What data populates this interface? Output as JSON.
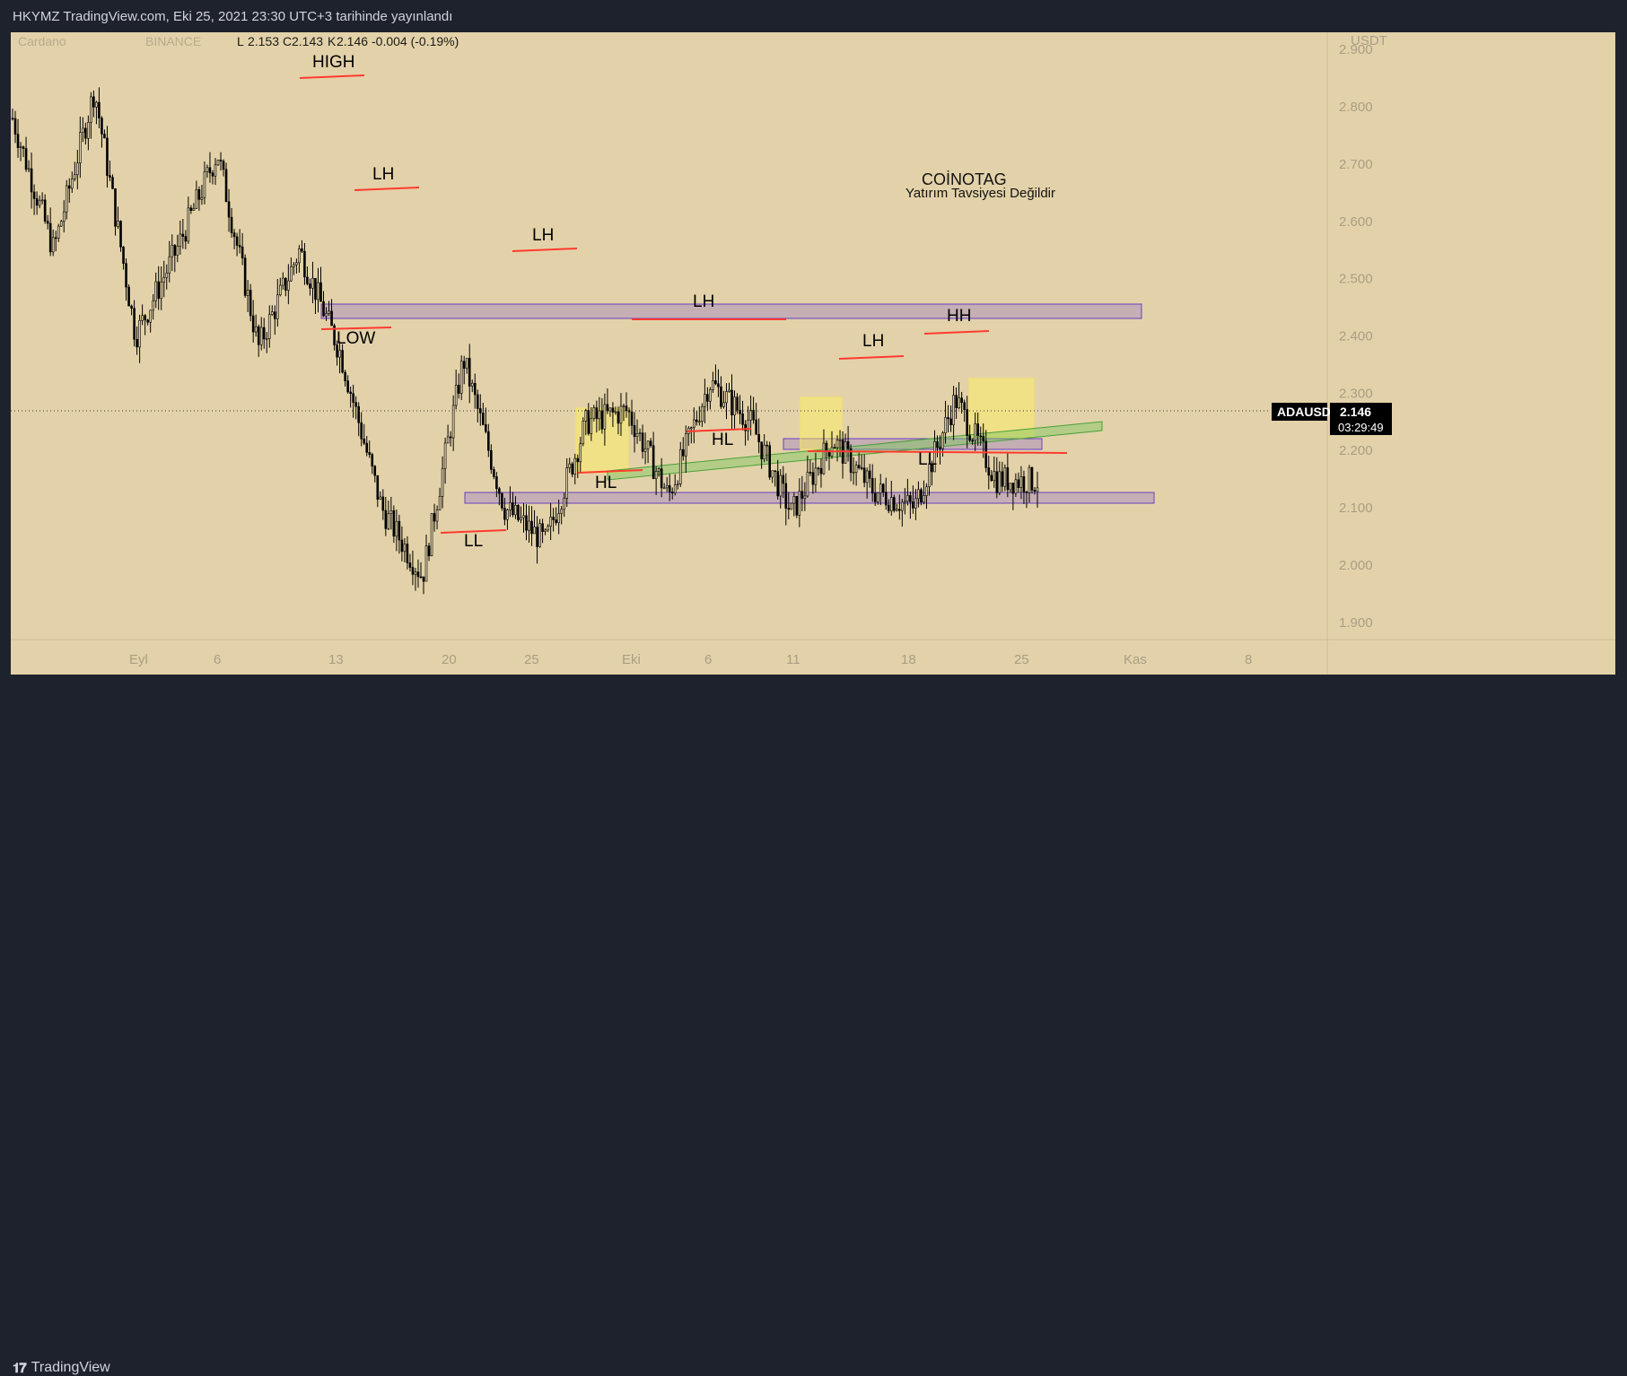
{
  "header": {
    "publish_line": "HKYMZ TradingView.com, Eki 25, 2021 23:30 UTC+3 tarihinde yayınlandı"
  },
  "legend": {
    "symbol_name": "Cardano",
    "exchange": "BINANCE",
    "low_label": "L",
    "low_value": "2.153",
    "close_label": "C",
    "close_value": "2.143",
    "last_label": "K",
    "last_value": "2.146",
    "change": "-0.004 (-0.19%)"
  },
  "price_axis": {
    "currency": "USDT",
    "ticks": [
      "2.900",
      "2.800",
      "2.700",
      "2.600",
      "2.500",
      "2.400",
      "2.300",
      "2.200",
      "2.100",
      "2.000",
      "1.900"
    ]
  },
  "time_axis": {
    "ticks": [
      "Eyl",
      "6",
      "13",
      "20",
      "25",
      "Eki",
      "6",
      "11",
      "18",
      "25",
      "Kas",
      "8"
    ]
  },
  "current_price": {
    "symbol": "ADAUSDT",
    "price": "2.146",
    "countdown": "03:29:49"
  },
  "watermark": {
    "line1": "COİNOTAG",
    "line2": "Yatırım Tavsiyesi Değildir"
  },
  "annotations": [
    "HIGH",
    "LH",
    "LOW",
    "LH",
    "LL",
    "HL",
    "LH",
    "HL",
    "LH",
    "LL",
    "HH"
  ],
  "footer": {
    "brand": "TradingView"
  },
  "colors": {
    "background": "#e3d2a9",
    "candle": "#000000",
    "level_line": "#ff3b30",
    "zone_fill": "rgba(140,110,200,0.35)",
    "zone_border": "#6a3fc0",
    "yellow_box": "rgba(255,245,90,0.45)",
    "channel_fill": "rgba(120,200,90,0.45)",
    "price_badge_bg": "#000000"
  },
  "chart_data": {
    "type": "candlestick",
    "instrument": "ADAUSDT",
    "ylim": [
      1.87,
      2.93
    ],
    "y_ticks": [
      1.9,
      2.0,
      2.1,
      2.2,
      2.3,
      2.4,
      2.5,
      2.6,
      2.7,
      2.8,
      2.9
    ],
    "last_price": 2.146,
    "approx_close_path": [
      {
        "x_date": "Eyl 01",
        "close": 2.78
      },
      {
        "x_date": "Eyl 04",
        "close": 2.55
      },
      {
        "x_date": "Eyl 06",
        "close": 2.83
      },
      {
        "x_date": "Eyl 08",
        "close": 2.4
      },
      {
        "x_date": "Eyl 10",
        "close": 2.55
      },
      {
        "x_date": "Eyl 12",
        "close": 2.72
      },
      {
        "x_date": "Eyl 14",
        "close": 2.38
      },
      {
        "x_date": "Eyl 15",
        "close": 2.55
      },
      {
        "x_date": "Eyl 18",
        "close": 2.37
      },
      {
        "x_date": "Eyl 21",
        "close": 2.1
      },
      {
        "x_date": "Eyl 22",
        "close": 1.98
      },
      {
        "x_date": "Eyl 25",
        "close": 2.36
      },
      {
        "x_date": "Eyl 28",
        "close": 2.1
      },
      {
        "x_date": "Eyl 30",
        "close": 2.04
      },
      {
        "x_date": "Eki 02",
        "close": 2.25
      },
      {
        "x_date": "Eki 04",
        "close": 2.27
      },
      {
        "x_date": "Eki 06",
        "close": 2.12
      },
      {
        "x_date": "Eki 07",
        "close": 2.32
      },
      {
        "x_date": "Eki 10",
        "close": 2.25
      },
      {
        "x_date": "Eki 12",
        "close": 2.09
      },
      {
        "x_date": "Eki 15",
        "close": 2.22
      },
      {
        "x_date": "Eki 18",
        "close": 2.13
      },
      {
        "x_date": "Eki 20",
        "close": 2.1
      },
      {
        "x_date": "Eki 21",
        "close": 2.29
      },
      {
        "x_date": "Eki 23",
        "close": 2.15
      },
      {
        "x_date": "Eki 25",
        "close": 2.146
      }
    ]
  }
}
